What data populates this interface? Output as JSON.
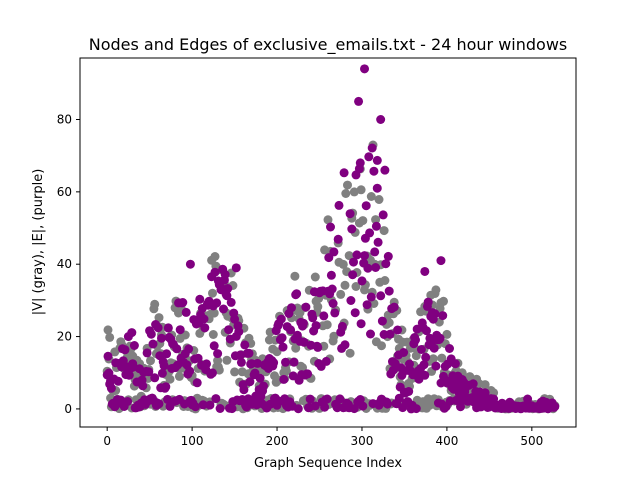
{
  "chart_data": {
    "type": "scatter",
    "title": "Nodes and Edges of exclusive_emails.txt - 24 hour windows",
    "xlabel": "Graph Sequence Index",
    "ylabel": "|V| (gray), |E|, (purple)",
    "xlim": [
      -32,
      552
    ],
    "ylim": [
      -5,
      97
    ],
    "xticks": [
      "0",
      "100",
      "200",
      "300",
      "400",
      "500"
    ],
    "yticks": [
      "0",
      "20",
      "40",
      "60",
      "80"
    ],
    "grid": false,
    "legend": "none",
    "n_points": 528,
    "series": [
      {
        "color": "#808080",
        "waypoints": [
          [
            0,
            15
          ],
          [
            10,
            12
          ],
          [
            25,
            18
          ],
          [
            40,
            10
          ],
          [
            55,
            20
          ],
          [
            70,
            15
          ],
          [
            85,
            22
          ],
          [
            100,
            18
          ],
          [
            115,
            25
          ],
          [
            130,
            30
          ],
          [
            145,
            26
          ],
          [
            160,
            16
          ],
          [
            175,
            10
          ],
          [
            190,
            14
          ],
          [
            205,
            20
          ],
          [
            220,
            25
          ],
          [
            235,
            22
          ],
          [
            250,
            26
          ],
          [
            260,
            35
          ],
          [
            270,
            40
          ],
          [
            280,
            44
          ],
          [
            290,
            42
          ],
          [
            300,
            48
          ],
          [
            310,
            52
          ],
          [
            320,
            46
          ],
          [
            330,
            34
          ],
          [
            340,
            20
          ],
          [
            355,
            12
          ],
          [
            370,
            20
          ],
          [
            385,
            24
          ],
          [
            395,
            22
          ],
          [
            405,
            14
          ],
          [
            415,
            8
          ],
          [
            430,
            6
          ],
          [
            450,
            4
          ],
          [
            470,
            1
          ],
          [
            490,
            0.5
          ],
          [
            527,
            0.5
          ]
        ]
      },
      {
        "color": "#800080",
        "waypoints": [
          [
            0,
            12
          ],
          [
            10,
            12
          ],
          [
            25,
            17
          ],
          [
            40,
            8
          ],
          [
            55,
            19
          ],
          [
            70,
            14
          ],
          [
            85,
            21
          ],
          [
            100,
            16
          ],
          [
            115,
            24
          ],
          [
            130,
            30
          ],
          [
            145,
            24
          ],
          [
            160,
            14
          ],
          [
            175,
            8
          ],
          [
            190,
            12
          ],
          [
            205,
            18
          ],
          [
            220,
            22
          ],
          [
            235,
            19
          ],
          [
            250,
            24
          ],
          [
            260,
            36
          ],
          [
            270,
            42
          ],
          [
            280,
            47
          ],
          [
            290,
            44
          ],
          [
            300,
            52
          ],
          [
            310,
            56
          ],
          [
            320,
            48
          ],
          [
            330,
            33
          ],
          [
            340,
            18
          ],
          [
            355,
            10
          ],
          [
            370,
            18
          ],
          [
            385,
            22
          ],
          [
            395,
            20
          ],
          [
            405,
            12
          ],
          [
            415,
            6
          ],
          [
            430,
            5
          ],
          [
            450,
            3
          ],
          [
            470,
            1
          ],
          [
            490,
            0.3
          ],
          [
            527,
            0.3
          ]
        ]
      }
    ],
    "highlights": [
      {
        "x": 303,
        "y": 94
      },
      {
        "x": 296,
        "y": 85
      },
      {
        "x": 322,
        "y": 80
      },
      {
        "x": 298,
        "y": 68
      },
      {
        "x": 327,
        "y": 66
      },
      {
        "x": 318,
        "y": 61
      },
      {
        "x": 98,
        "y": 40
      },
      {
        "x": 393,
        "y": 41
      },
      {
        "x": 374,
        "y": 38
      },
      {
        "x": 152,
        "y": 39
      }
    ]
  }
}
